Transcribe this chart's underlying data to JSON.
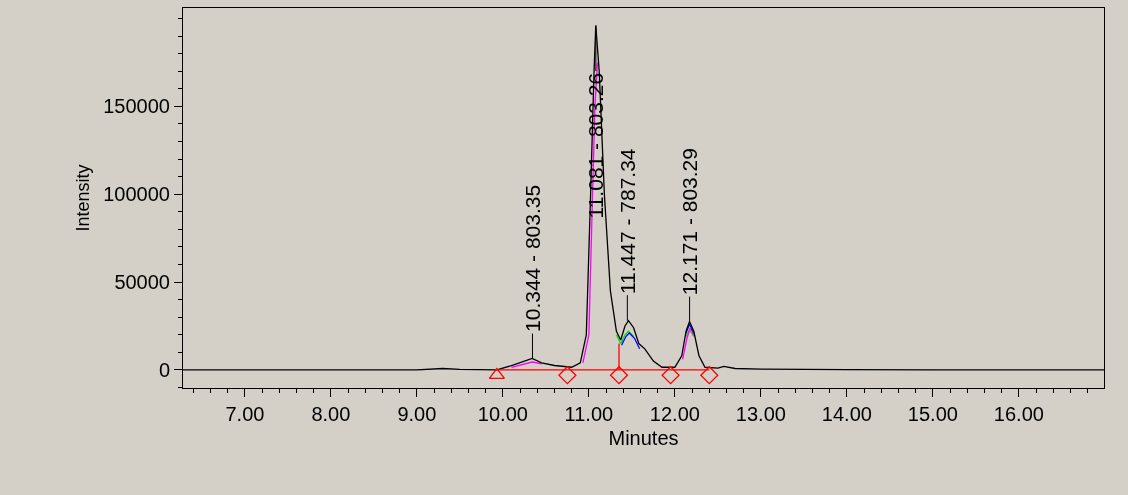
{
  "chart_data": {
    "type": "line",
    "xlabel": "Minutes",
    "ylabel": "Intensity",
    "xlim": [
      6.28,
      16.99
    ],
    "ylim": [
      -10300,
      206000
    ],
    "xticks": [
      {
        "value": 7,
        "label": "7.00"
      },
      {
        "value": 8,
        "label": "8.00"
      },
      {
        "value": 9,
        "label": "9.00"
      },
      {
        "value": 10,
        "label": "10.00"
      },
      {
        "value": 11,
        "label": "11.00"
      },
      {
        "value": 12,
        "label": "12.00"
      },
      {
        "value": 13,
        "label": "13.00"
      },
      {
        "value": 14,
        "label": "14.00"
      },
      {
        "value": 15,
        "label": "15.00"
      },
      {
        "value": 16,
        "label": "16.00"
      }
    ],
    "yticks": [
      0,
      50000,
      100000,
      150000
    ],
    "grid": false,
    "marker": "none",
    "series": [
      {
        "color": "#00e000",
        "x": [
          11.32,
          11.37,
          11.42,
          11.46,
          11.52,
          11.58,
          11.65,
          11.75,
          11.85,
          12.0,
          12.08,
          12.13,
          12.17,
          12.22
        ],
        "values": [
          20000,
          15000,
          20000,
          22000,
          19000,
          null,
          null,
          null,
          null,
          null,
          null,
          19000,
          23000,
          19000
        ]
      },
      {
        "color": "#ff00ff",
        "x": [
          10.1,
          10.34,
          10.45,
          10.6,
          10.8,
          10.93,
          11.0,
          11.04,
          11.07,
          11.1,
          11.14,
          11.19,
          11.26,
          11.33,
          11.38,
          11.43,
          11.47,
          11.53,
          11.59,
          11.66,
          11.76,
          11.86,
          12.0,
          12.09,
          12.14,
          12.18,
          12.23
        ],
        "values": [
          1500,
          4500,
          3500,
          null,
          null,
          4000,
          20000,
          95000,
          150000,
          175000,
          null,
          null,
          null,
          null,
          null,
          null,
          null,
          null,
          null,
          null,
          null,
          null,
          null,
          6000,
          18000,
          24000,
          19000
        ]
      },
      {
        "color": "#0000ff",
        "x": [
          11.38,
          11.43,
          11.47,
          11.53,
          11.59,
          11.66,
          11.76,
          11.86,
          12.0,
          12.08,
          12.13,
          12.17,
          12.22
        ],
        "values": [
          14000,
          19000,
          21000,
          18000,
          12000,
          null,
          null,
          null,
          null,
          null,
          21000,
          26000,
          21000
        ]
      },
      {
        "color": "#000000",
        "x": [
          6.28,
          9.0,
          9.3,
          9.5,
          9.93,
          10.1,
          10.34,
          10.45,
          10.6,
          10.8,
          10.9,
          10.97,
          11.02,
          11.06,
          11.08,
          11.12,
          11.18,
          11.25,
          11.32,
          11.37,
          11.42,
          11.46,
          11.52,
          11.58,
          11.65,
          11.75,
          11.85,
          12.0,
          12.08,
          12.13,
          12.17,
          12.22,
          12.28,
          12.35,
          12.5,
          12.57,
          12.7,
          13.0,
          14.0,
          15.0,
          16.99
        ],
        "values": [
          0,
          0,
          800,
          300,
          0,
          2500,
          6500,
          4000,
          2500,
          1500,
          4000,
          20000,
          100000,
          170000,
          196000,
          170000,
          100000,
          45000,
          22000,
          17000,
          25000,
          28000,
          24000,
          15000,
          12000,
          5000,
          1500,
          1500,
          8000,
          22000,
          27500,
          22000,
          8000,
          1500,
          1000,
          2000,
          800,
          500,
          200,
          0,
          0
        ]
      },
      {
        "type": "line",
        "color": "#ff0000",
        "x": [
          9.93,
          12.4
        ],
        "values": [
          0,
          0
        ]
      },
      {
        "type": "line",
        "color": "#ff0000",
        "x": [
          11.35,
          11.35
        ],
        "values": [
          0,
          15000
        ]
      },
      {
        "type": "scatter",
        "marker": "triangle",
        "color": "#ff0000",
        "x": [
          9.93
        ],
        "values": [
          -3000
        ]
      },
      {
        "type": "scatter",
        "marker": "diamond",
        "color": "#ff0000",
        "x": [
          10.75,
          11.35,
          11.95,
          12.4
        ],
        "values": [
          -3000,
          -3000,
          -3000,
          -3000
        ]
      }
    ],
    "annotations": [
      {
        "text": "10.344 - 803.35",
        "x": 10.344,
        "y": 6500
      },
      {
        "text": "11.081 - 803.26",
        "x": 11.081,
        "y": 196000
      },
      {
        "text": "11.447 - 787.34",
        "x": 11.447,
        "y": 28000
      },
      {
        "text": "12.171 - 803.29",
        "x": 12.171,
        "y": 27500
      }
    ]
  }
}
